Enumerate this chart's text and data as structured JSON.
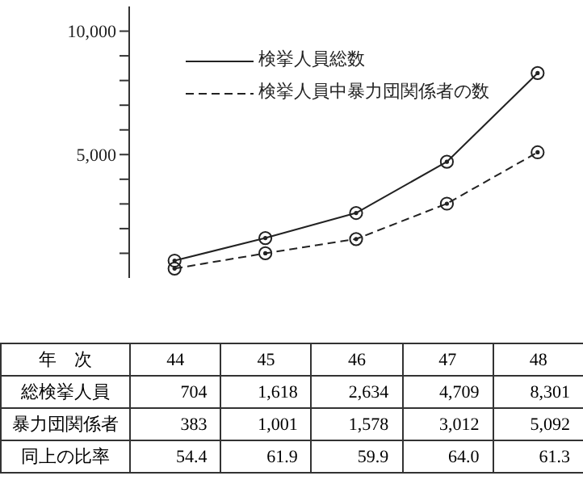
{
  "chart_data": {
    "type": "line",
    "xlabel": "年　次",
    "categories": [
      "44",
      "45",
      "46",
      "47",
      "48"
    ],
    "series": [
      {
        "name": "検挙人員総数",
        "color": "#222222",
        "values": [
          704,
          1618,
          2634,
          4709,
          8301
        ],
        "value_labels": [
          "704",
          "1,618",
          "2,634",
          "4,709",
          "8,301"
        ],
        "line_style": "solid"
      },
      {
        "name": "検挙人員中暴力団関係者の数",
        "color": "#222222",
        "values": [
          383,
          1001,
          1578,
          3012,
          5092
        ],
        "value_labels": [
          "383",
          "1,001",
          "1,578",
          "3,012",
          "5,092"
        ],
        "line_style": "dashed"
      }
    ],
    "ylim": [
      0,
      11000
    ],
    "yticks": [
      {
        "value": 1000,
        "label": null
      },
      {
        "value": 2000,
        "label": null
      },
      {
        "value": 3000,
        "label": null
      },
      {
        "value": 4000,
        "label": null
      },
      {
        "value": 5000,
        "label": "5,000"
      },
      {
        "value": 6000,
        "label": null
      },
      {
        "value": 7000,
        "label": null
      },
      {
        "value": 8000,
        "label": null
      },
      {
        "value": 9000,
        "label": null
      },
      {
        "value": 10000,
        "label": "10,000"
      }
    ],
    "grid": false,
    "legend": "top left",
    "marker": "circle",
    "annotations": [
      "総検挙人員",
      "暴力団関係者",
      "同上の比率",
      "54.4",
      "61.9",
      "59.9",
      "64.0",
      "61.3"
    ]
  }
}
